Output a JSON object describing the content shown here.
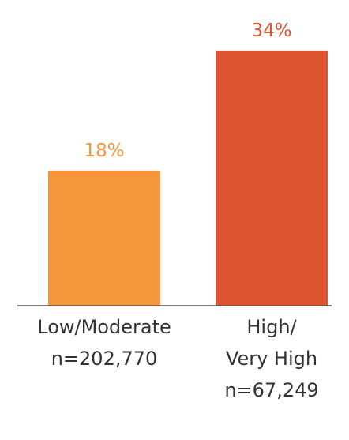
{
  "chart_data": {
    "type": "bar",
    "categories": [
      [
        "Low/Moderate",
        "n=202,770"
      ],
      [
        "High/",
        "Very High",
        "n=67,249"
      ]
    ],
    "values": [
      18,
      34
    ],
    "value_labels": [
      "18%",
      "34%"
    ],
    "unit": "%",
    "colors": [
      "#f5963d",
      "#dc5430"
    ],
    "label_colors": [
      "#f5963d",
      "#dc5430"
    ],
    "axis_color": "#555555",
    "title": "",
    "xlabel": "",
    "ylabel": "",
    "ylim": [
      0,
      36.3
    ],
    "grid": false,
    "legend": "none"
  }
}
